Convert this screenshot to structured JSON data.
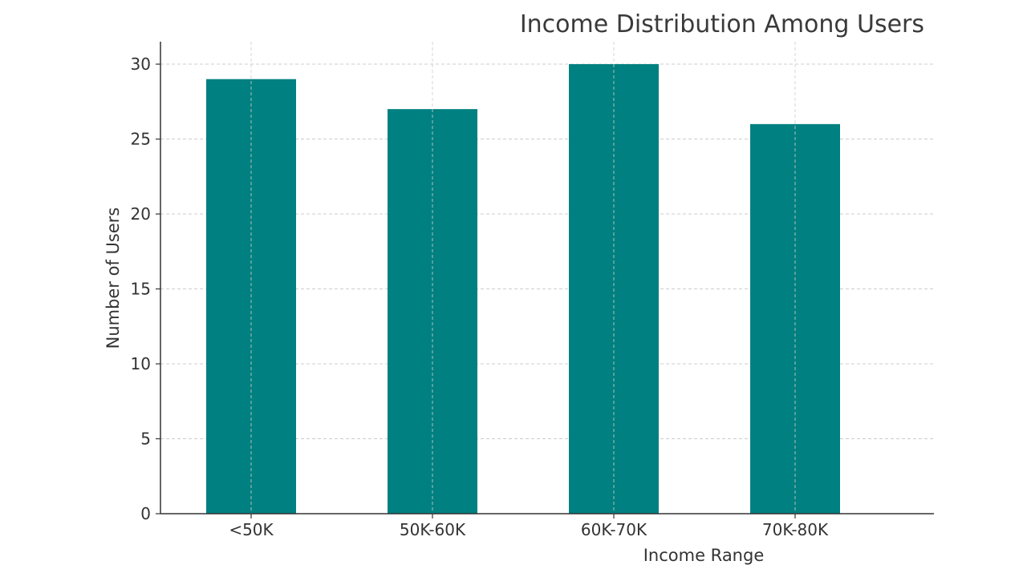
{
  "chart_data": {
    "type": "bar",
    "title": "Income Distribution Among Users",
    "xlabel": "Income Range",
    "ylabel": "Number of Users",
    "categories": [
      "<50K",
      "50K-60K",
      "60K-70K",
      "70K-80K"
    ],
    "values": [
      29,
      27,
      30,
      26
    ],
    "ylim": [
      0,
      31.5
    ],
    "yticks": [
      0,
      5,
      10,
      15,
      20,
      25,
      30
    ],
    "grid": true,
    "bar_color": "#008080",
    "legend": "none"
  }
}
